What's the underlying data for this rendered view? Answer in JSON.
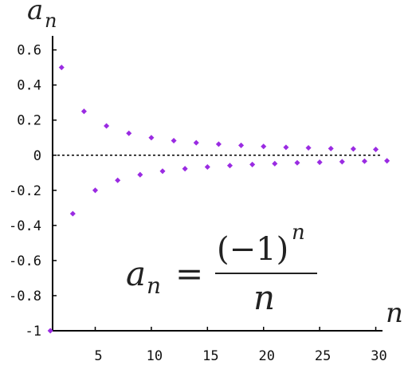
{
  "chart_data": {
    "type": "scatter",
    "y_label": "a",
    "y_label_sub": "n",
    "x_label": "n",
    "formula": {
      "lhs": "a",
      "lhs_sub": "n",
      "eq": "=",
      "numerator": "(−1)",
      "numerator_sup": "n",
      "denominator": "n"
    },
    "x": [
      1,
      2,
      3,
      4,
      5,
      6,
      7,
      8,
      9,
      10,
      11,
      12,
      13,
      14,
      15,
      16,
      17,
      18,
      19,
      20,
      21,
      22,
      23,
      24,
      25,
      26,
      27,
      28,
      29,
      30,
      31
    ],
    "series": [
      {
        "color": "#9a2be2",
        "values": [
          -1,
          0.5,
          -0.333,
          0.25,
          -0.2,
          0.167,
          -0.143,
          0.125,
          -0.111,
          0.1,
          -0.091,
          0.083,
          -0.077,
          0.071,
          -0.067,
          0.063,
          -0.059,
          0.056,
          -0.053,
          0.05,
          -0.048,
          0.045,
          -0.043,
          0.042,
          -0.04,
          0.038,
          -0.037,
          0.036,
          -0.034,
          0.033,
          -0.032
        ]
      }
    ],
    "xlim": [
      1.2,
      30.6
    ],
    "ylim": [
      -1,
      0.68
    ],
    "xticks": [
      5,
      10,
      15,
      20,
      25,
      30
    ],
    "yticks": [
      -1,
      -0.8,
      -0.6,
      -0.4,
      -0.2,
      0,
      0.2,
      0.4,
      0.6
    ],
    "zero_line": true
  }
}
